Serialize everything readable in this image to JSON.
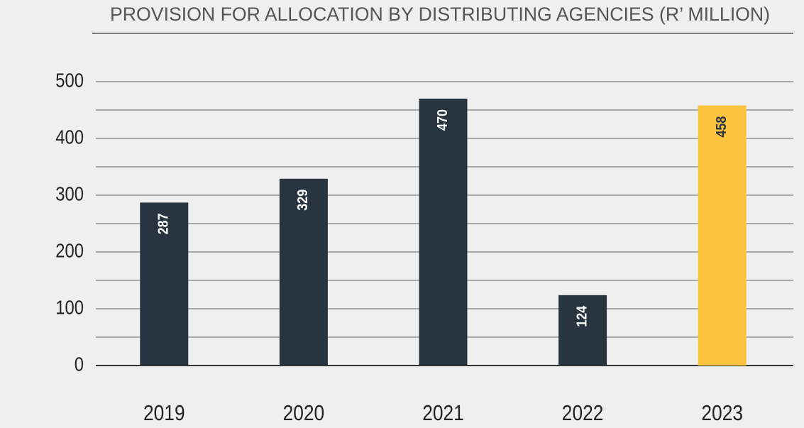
{
  "chart_data": {
    "type": "bar",
    "title": "PROVISION FOR ALLOCATION BY DISTRIBUTING AGENCIES (R’ MILLION)",
    "categories": [
      "2019",
      "2020",
      "2021",
      "2022",
      "2023"
    ],
    "values": [
      287,
      329,
      470,
      124,
      458
    ],
    "colors": [
      "#28343f",
      "#28343f",
      "#28343f",
      "#28343f",
      "#fcc43c"
    ],
    "ylim": [
      0,
      500
    ],
    "yticks": [
      0,
      100,
      200,
      300,
      400,
      500
    ],
    "grid": true
  }
}
